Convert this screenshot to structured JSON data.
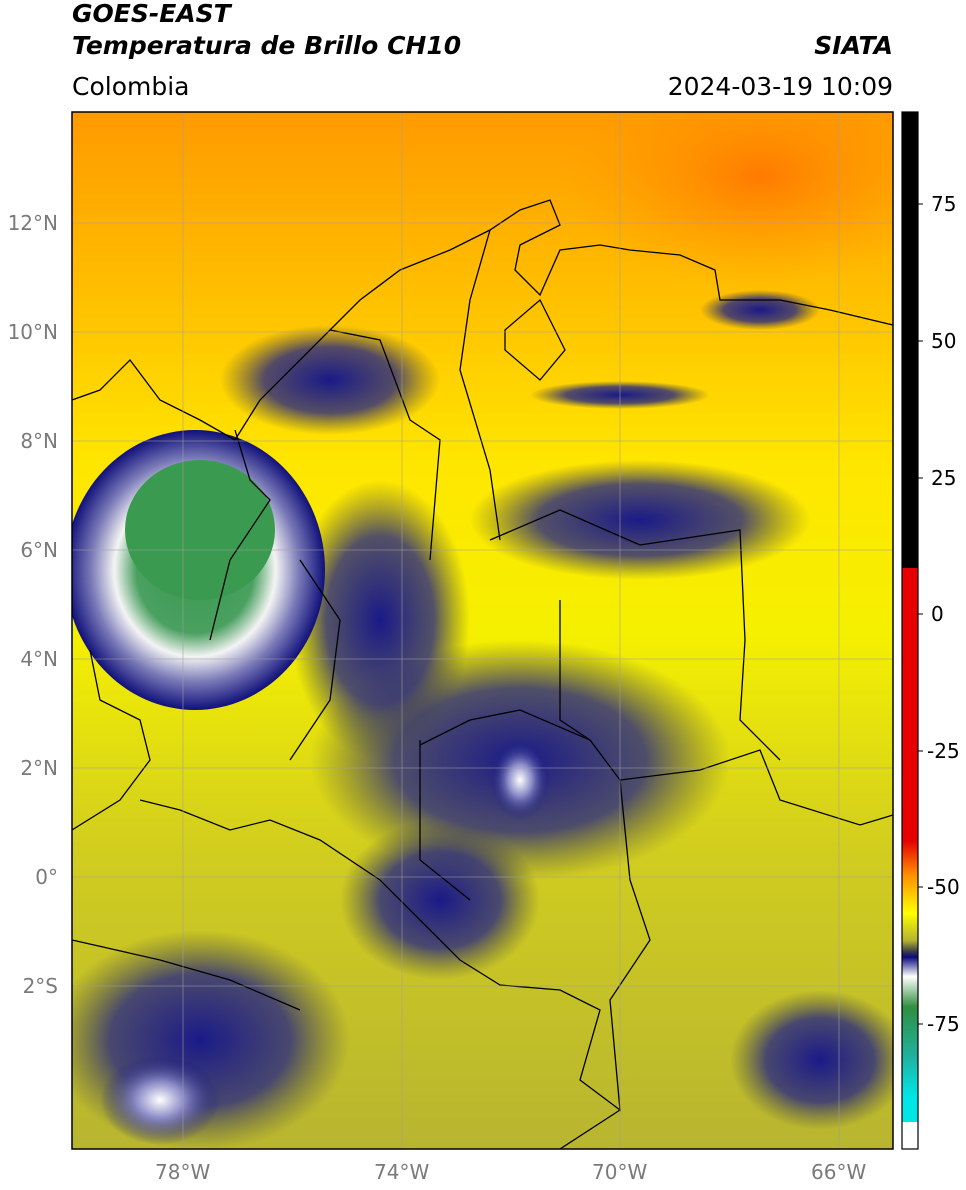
{
  "header": {
    "satellite": "GOES-EAST",
    "product": "Temperatura de Brillo CH10",
    "agency": "SIATA",
    "region": "Colombia",
    "datetime": "2024-03-19 10:09"
  },
  "map": {
    "lon_range": [
      -80,
      -65
    ],
    "lat_range": [
      -5,
      14
    ],
    "lon_ticks": [
      "78°W",
      "74°W",
      "70°W",
      "66°W"
    ],
    "lat_ticks": [
      "12°N",
      "10°N",
      "8°N",
      "6°N",
      "4°N",
      "2°N",
      "0°",
      "2°S"
    ],
    "gridlines": true
  },
  "colorbar": {
    "ticks": [
      "75",
      "50",
      "25",
      "0",
      "-25",
      "-50",
      "-75"
    ],
    "range": [
      -95,
      90
    ],
    "colors": {
      "hot": "#000000",
      "warm_red": "#e60000",
      "orange": "#ff8c00",
      "yellow": "#ffff00",
      "olive": "#b3b330",
      "navy": "#0a0a80",
      "white": "#ffffff",
      "green": "#2f8f3f",
      "teal": "#20b2a0",
      "cyan": "#00e5e5"
    }
  }
}
